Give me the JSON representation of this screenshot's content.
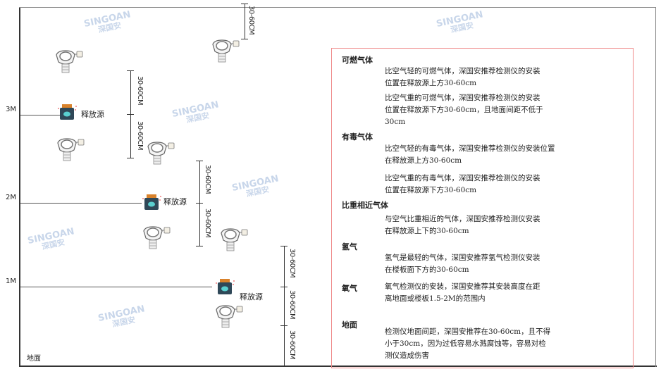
{
  "levels": {
    "l3": "3M",
    "l2": "2M",
    "l1": "1M",
    "ground": "地面"
  },
  "dimension_label": "30-60CM",
  "source_label": "释放源",
  "watermark": {
    "brand": "SINGOAN",
    "cn": "深国安"
  },
  "colors": {
    "box_border": "#ef8a8a",
    "source_body": "#2f4858",
    "source_cap": "#d9822b",
    "source_face": "#5ad0d0"
  },
  "panel": {
    "sections": [
      {
        "title": "可燃气体",
        "paragraphs": [
          "比空气轻的可燃气体，深国安推荐检测仪的安装\n位置在释放源上方30-60cm",
          "比空气重的可燃气体，深国安推荐检测仪的安装\n位置在释放源下方30-60cm，且地面间距不低于\n30cm"
        ]
      },
      {
        "title": "有毒气体",
        "paragraphs": [
          "比空气轻的有毒气体，深国安推荐检测仪的安装位置\n在释放源上方30-60cm",
          "比空气重的有毒气体，深国安推荐检测仪的安装\n位置在释放源下方30-60cm"
        ]
      },
      {
        "title": "比重相近气体",
        "paragraphs": [
          "与空气比重相近的气体，深国安推荐检测仪安装\n在释放源上下的30-60cm"
        ]
      },
      {
        "title": "氢气",
        "paragraphs": [
          "氢气是最轻的气体，深国安推荐氢气检测仪安装\n在楼板面下方的30-60cm"
        ]
      },
      {
        "title": "氧气",
        "paragraphs": [
          "氧气检测仪的安装，深国安推荐其安装高度在距\n离地面或楼板1.5-2M的范围内"
        ]
      },
      {
        "title": "地面",
        "paragraphs": [
          "检测仪地面间距，深国安推荐在30-60cm，且不得\n小于30cm，因为过低容易水溅腐蚀等，容易对检\n测仪造成伤害"
        ]
      }
    ]
  }
}
